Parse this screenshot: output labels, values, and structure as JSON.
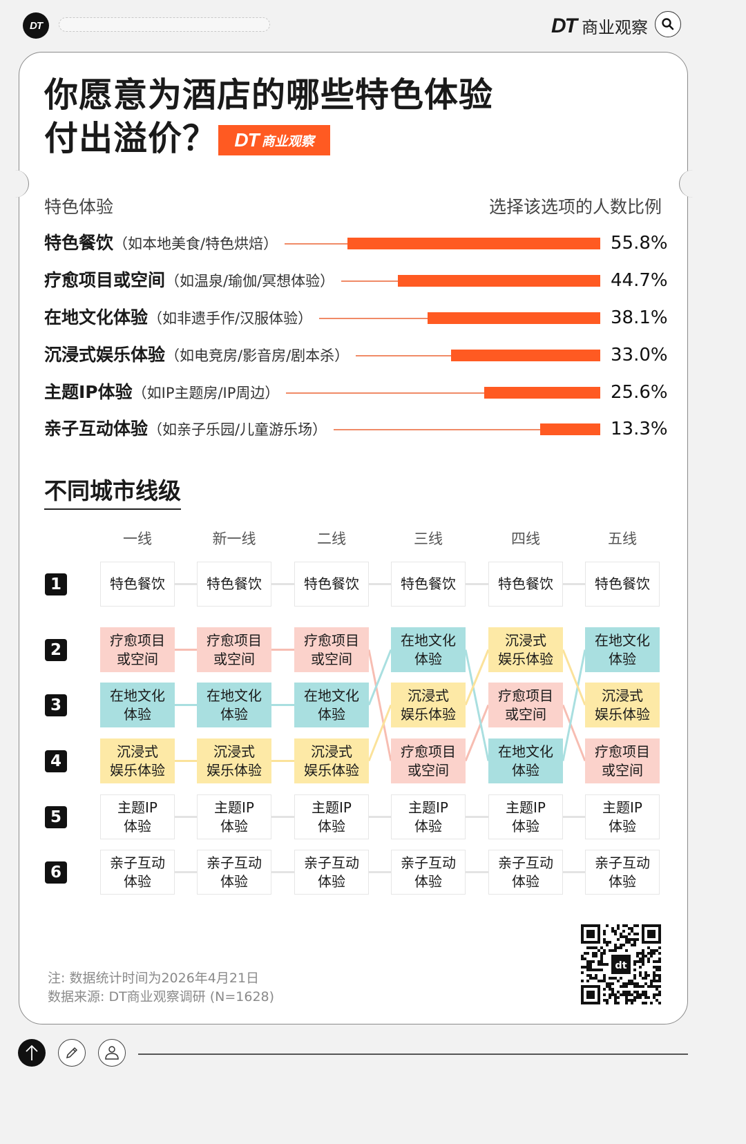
{
  "topbar": {
    "logo": "DT",
    "brand_mark": "DT",
    "brand_name": "商业观察",
    "search_icon": "search-icon"
  },
  "title": {
    "line1": "你愿意为酒店的哪些特色体验",
    "line2": "付出溢价？",
    "badge_mark": "DT",
    "badge_name": "商业观察"
  },
  "bar_section": {
    "left_header": "特色体验",
    "right_header": "选择该选项的人数比例",
    "rows": [
      {
        "main": "特色餐饮",
        "sub": "（如本地美食/特色烘焙）",
        "value": "55.8%"
      },
      {
        "main": "疗愈项目或空间",
        "sub": "（如温泉/瑜伽/冥想体验）",
        "value": "44.7%"
      },
      {
        "main": "在地文化体验",
        "sub": "（如非遗手作/汉服体验）",
        "value": "38.1%"
      },
      {
        "main": "沉浸式娱乐体验",
        "sub": "（如电竞房/影音房/剧本杀）",
        "value": "33.0%"
      },
      {
        "main": "主题IP体验",
        "sub": "（如IP主题房/IP周边）",
        "value": "25.6%"
      },
      {
        "main": "亲子互动体验",
        "sub": "（如亲子乐园/儿童游乐场）",
        "value": "13.3%"
      }
    ]
  },
  "rank_section": {
    "title": "不同城市线级",
    "tiers": [
      "一线",
      "新一线",
      "二线",
      "三线",
      "四线",
      "五线"
    ],
    "ranks": [
      "1",
      "2",
      "3",
      "4",
      "5",
      "6"
    ],
    "colors": {
      "特色餐饮": "#ffffff",
      "疗愈项目或空间": "#fbd2cb",
      "在地文化体验": "#a9dfe0",
      "沉浸式娱乐体验": "#fde9a6",
      "主题IP体验": "#ffffff",
      "亲子互动体验": "#ffffff"
    },
    "labels": {
      "特色餐饮": "特色餐饮",
      "疗愈项目或空间": "疗愈项目\n或空间",
      "在地文化体验": "在地文化\n体验",
      "沉浸式娱乐体验": "沉浸式\n娱乐体验",
      "主题IP体验": "主题IP\n体验",
      "亲子互动体验": "亲子互动\n体验"
    },
    "grid": [
      [
        "特色餐饮",
        "疗愈项目或空间",
        "在地文化体验",
        "沉浸式娱乐体验",
        "主题IP体验",
        "亲子互动体验"
      ],
      [
        "特色餐饮",
        "疗愈项目或空间",
        "在地文化体验",
        "沉浸式娱乐体验",
        "主题IP体验",
        "亲子互动体验"
      ],
      [
        "特色餐饮",
        "疗愈项目或空间",
        "在地文化体验",
        "沉浸式娱乐体验",
        "主题IP体验",
        "亲子互动体验"
      ],
      [
        "特色餐饮",
        "在地文化体验",
        "沉浸式娱乐体验",
        "疗愈项目或空间",
        "主题IP体验",
        "亲子互动体验"
      ],
      [
        "特色餐饮",
        "沉浸式娱乐体验",
        "疗愈项目或空间",
        "在地文化体验",
        "主题IP体验",
        "亲子互动体验"
      ],
      [
        "特色餐饮",
        "在地文化体验",
        "沉浸式娱乐体验",
        "疗愈项目或空间",
        "主题IP体验",
        "亲子互动体验"
      ]
    ]
  },
  "footer": {
    "note": "注: 数据统计时间为2026年4月21日",
    "source": "数据来源: DT商业观察调研 (N=1628)"
  },
  "bottom_bar": {
    "buttons": [
      "arrow-up-icon",
      "pencil-icon",
      "user-icon"
    ]
  },
  "chart_data": [
    {
      "type": "bar",
      "orientation": "horizontal",
      "title": "你愿意为酒店的哪些特色体验付出溢价？",
      "xlabel": "选择该选项的人数比例",
      "ylabel": "特色体验",
      "categories": [
        "特色餐饮",
        "疗愈项目或空间",
        "在地文化体验",
        "沉浸式娱乐体验",
        "主题IP体验",
        "亲子互动体验"
      ],
      "category_notes": [
        "如本地美食/特色烘焙",
        "如温泉/瑜伽/冥想体验",
        "如非遗手作/汉服体验",
        "如电竞房/影音房/剧本杀",
        "如IP主题房/IP周边",
        "如亲子乐园/儿童游乐场"
      ],
      "values": [
        55.8,
        44.7,
        38.1,
        33.0,
        25.6,
        13.3
      ],
      "unit": "%",
      "color": "#ff5a22",
      "grid": false,
      "legend": null
    },
    {
      "type": "table",
      "title": "不同城市线级",
      "columns": [
        "一线",
        "新一线",
        "二线",
        "三线",
        "四线",
        "五线"
      ],
      "row_labels": [
        "1",
        "2",
        "3",
        "4",
        "5",
        "6"
      ],
      "rankings": {
        "一线": [
          "特色餐饮",
          "疗愈项目或空间",
          "在地文化体验",
          "沉浸式娱乐体验",
          "主题IP体验",
          "亲子互动体验"
        ],
        "新一线": [
          "特色餐饮",
          "疗愈项目或空间",
          "在地文化体验",
          "沉浸式娱乐体验",
          "主题IP体验",
          "亲子互动体验"
        ],
        "二线": [
          "特色餐饮",
          "疗愈项目或空间",
          "在地文化体验",
          "沉浸式娱乐体验",
          "主题IP体验",
          "亲子互动体验"
        ],
        "三线": [
          "特色餐饮",
          "在地文化体验",
          "沉浸式娱乐体验",
          "疗愈项目或空间",
          "主题IP体验",
          "亲子互动体验"
        ],
        "四线": [
          "特色餐饮",
          "沉浸式娱乐体验",
          "疗愈项目或空间",
          "在地文化体验",
          "主题IP体验",
          "亲子互动体验"
        ],
        "五线": [
          "特色餐饮",
          "在地文化体验",
          "沉浸式娱乐体验",
          "疗愈项目或空间",
          "主题IP体验",
          "亲子互动体验"
        ]
      }
    }
  ]
}
